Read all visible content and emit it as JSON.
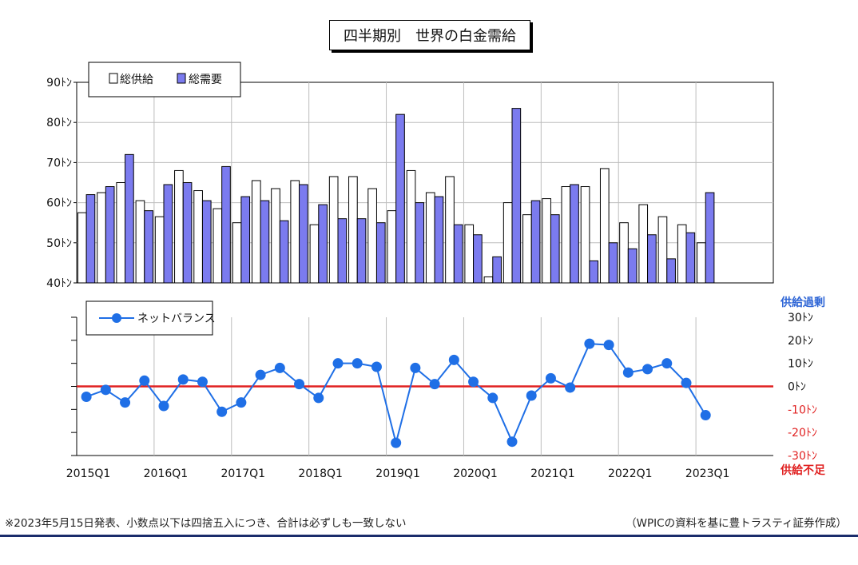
{
  "title": "四半期別　世界の白金需給",
  "footnote_left": "※2023年5月15日発表、小数点以下は四捨五入につき、合計は必ずしも一致しない",
  "footnote_right": "（WPICの資料を基に豊トラスティ証券作成）",
  "colors": {
    "supply_fill": "#ffffff",
    "demand_fill": "#7b7bef",
    "balance_line": "#1f6fe6",
    "zero_line": "#e02020",
    "surplus_label": "#2f66d6",
    "deficit_label": "#e02020"
  },
  "chart_data": [
    {
      "type": "bar",
      "categories": [
        "2015Q1",
        "2015Q2",
        "2015Q3",
        "2015Q4",
        "2016Q1",
        "2016Q2",
        "2016Q3",
        "2016Q4",
        "2017Q1",
        "2017Q2",
        "2017Q3",
        "2017Q4",
        "2018Q1",
        "2018Q2",
        "2018Q3",
        "2018Q4",
        "2019Q1",
        "2019Q2",
        "2019Q3",
        "2019Q4",
        "2020Q1",
        "2020Q2",
        "2020Q3",
        "2020Q4",
        "2021Q1",
        "2021Q2",
        "2021Q3",
        "2021Q4",
        "2022Q1",
        "2022Q2",
        "2022Q3",
        "2022Q4",
        "2023Q1"
      ],
      "x_tick_labels": [
        "2015Q1",
        "2016Q1",
        "2017Q1",
        "2018Q1",
        "2019Q1",
        "2020Q1",
        "2021Q1",
        "2022Q1",
        "2023Q1"
      ],
      "ylim": [
        40,
        90
      ],
      "y_ticks": [
        "40ﾄﾝ",
        "50ﾄﾝ",
        "60ﾄﾝ",
        "70ﾄﾝ",
        "80ﾄﾝ",
        "90ﾄﾝ"
      ],
      "grid": true,
      "legend_position": "top-left",
      "series": [
        {
          "name": "総供給",
          "values": [
            57.5,
            62.5,
            65,
            60.5,
            56.5,
            68,
            63,
            58.5,
            55,
            65.5,
            63.5,
            65.5,
            54.5,
            66.5,
            66.5,
            63.5,
            58,
            68,
            62.5,
            66.5,
            54.5,
            41.5,
            60,
            57,
            61,
            64,
            64,
            68.5,
            55,
            59.5,
            56.5,
            54.5,
            50
          ]
        },
        {
          "name": "総需要",
          "values": [
            62,
            64,
            72,
            58,
            64.5,
            65,
            60.5,
            69,
            61.5,
            60.5,
            55.5,
            64.5,
            59.5,
            56,
            56,
            55,
            82,
            60,
            61.5,
            54.5,
            52,
            46.5,
            83.5,
            60.5,
            57,
            64.5,
            45.5,
            50,
            48.5,
            52,
            46,
            52.5,
            62.5
          ]
        }
      ]
    },
    {
      "type": "line",
      "categories": [
        "2015Q1",
        "2015Q2",
        "2015Q3",
        "2015Q4",
        "2016Q1",
        "2016Q2",
        "2016Q3",
        "2016Q4",
        "2017Q1",
        "2017Q2",
        "2017Q3",
        "2017Q4",
        "2018Q1",
        "2018Q2",
        "2018Q3",
        "2018Q4",
        "2019Q1",
        "2019Q2",
        "2019Q3",
        "2019Q4",
        "2020Q1",
        "2020Q2",
        "2020Q3",
        "2020Q4",
        "2021Q1",
        "2021Q2",
        "2021Q3",
        "2021Q4",
        "2022Q1",
        "2022Q2",
        "2022Q3",
        "2022Q4",
        "2023Q1"
      ],
      "x_tick_labels": [
        "2015Q1",
        "2016Q1",
        "2017Q1",
        "2018Q1",
        "2019Q1",
        "2020Q1",
        "2021Q1",
        "2022Q1",
        "2023Q1"
      ],
      "ylim": [
        -30,
        30
      ],
      "y_ticks": [
        "-30ﾄﾝ",
        "-20ﾄﾝ",
        "-10ﾄﾝ",
        "0ﾄﾝ",
        "10ﾄﾝ",
        "20ﾄﾝ",
        "30ﾄﾝ"
      ],
      "y_label_top": "供給過剰",
      "y_label_bottom": "供給不足",
      "legend_position": "top-left",
      "series": [
        {
          "name": "ネットバランス",
          "values": [
            -4.5,
            -1.5,
            -7,
            2.5,
            -8.5,
            3,
            2,
            -11,
            -7,
            5,
            8,
            1,
            -5,
            10,
            10,
            8.5,
            -24.5,
            8,
            1,
            11.5,
            2,
            -5,
            -24,
            -4,
            3.5,
            -0.5,
            18.5,
            18,
            6,
            7.5,
            10,
            1.5,
            -12.5
          ]
        }
      ]
    }
  ]
}
